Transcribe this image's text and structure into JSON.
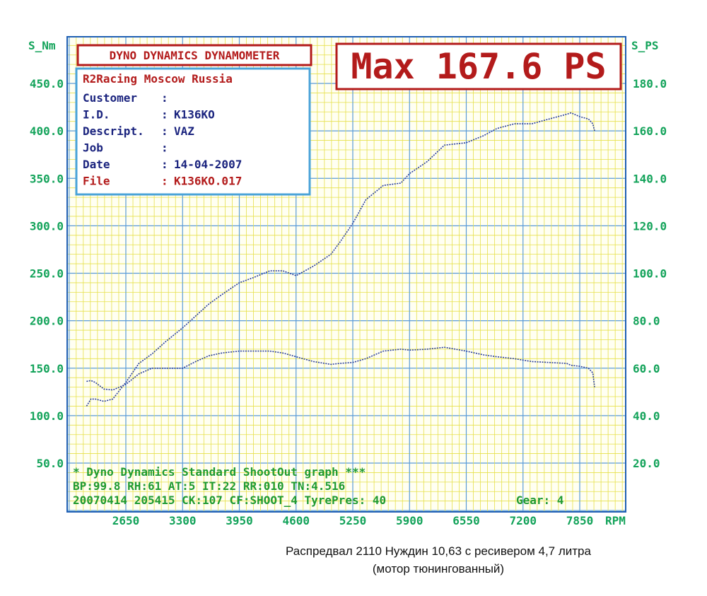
{
  "header": {
    "brand": "DYNO DYNAMICS DYNAMOMETER",
    "max_label": "Max 167.6 PS"
  },
  "info": {
    "shop": "R2Racing Moscow Russia",
    "rows": [
      {
        "key": "Customer",
        "sep": ":",
        "value": ""
      },
      {
        "key": "I.D.",
        "sep": ":",
        "value": "K136KO"
      },
      {
        "key": "Descript.",
        "sep": ":",
        "value": "VAZ"
      },
      {
        "key": "Job",
        "sep": ":",
        "value": ""
      },
      {
        "key": "Date",
        "sep": ":",
        "value": "14-04-2007"
      },
      {
        "key": "File",
        "sep": ":",
        "value": "K136KO.017"
      }
    ]
  },
  "footer": {
    "line1": "* Dyno Dynamics Standard ShootOut graph ***",
    "line2": "BP:99.8  RH:61 AT:5  IT:22  RR:010 TN:4.516",
    "line3": "20070414 205415 CK:107 CF:SHOOT_4  TyrePres: 40",
    "gear": "Gear: 4"
  },
  "caption": {
    "line1": "Распредвал 2110 Нуждин 10,63 с ресивером 4,7 литра",
    "line2": "(мотор тюнингованный)"
  },
  "colors": {
    "frame": "#1f5fb4",
    "grid_minor": "#e6e04a",
    "grid_major": "#5a9bd8",
    "axis_text": "#13a35a",
    "footer_text": "#1f9a30",
    "title_red": "#b31b1b",
    "info_blue": "#1a237e",
    "curve": "#2a3f9e",
    "background": "#fffff2"
  },
  "chart_data": {
    "type": "line",
    "x_unit": "RPM",
    "x_ticks": [
      2650,
      3300,
      3950,
      4600,
      5250,
      5900,
      6550,
      7200,
      7850
    ],
    "xlim": [
      2000,
      8500
    ],
    "y_left_label": "S_Nm",
    "y_left_ticks": [
      "50.0",
      "100.0",
      "150.0",
      "200.0",
      "250.0",
      "300.0",
      "350.0",
      "400.0",
      "450.0"
    ],
    "y_left_lim": [
      50,
      450
    ],
    "y_right_label": "S_PS",
    "y_right_ticks": [
      "20.0",
      "40.0",
      "60.0",
      "80.0",
      "100.0",
      "120.0",
      "140.0",
      "160.0",
      "180.0"
    ],
    "y_right_lim": [
      20,
      180
    ],
    "grid": true,
    "series": [
      {
        "name": "",
        "axis": "left",
        "x": [
          2200,
          2250,
          2300,
          2400,
          2500,
          2650,
          2800,
          2950,
          3100,
          3300,
          3450,
          3600,
          3750,
          3950,
          4100,
          4300,
          4450,
          4600,
          4800,
          5000,
          5100,
          5250,
          5400,
          5600,
          5800,
          5900,
          6100,
          6300,
          6550,
          6750,
          6900,
          7100,
          7300,
          7500,
          7700,
          7750,
          7850,
          7950,
          8000,
          8020
        ],
        "y": [
          136,
          137,
          135,
          128,
          127,
          133,
          144,
          150,
          150,
          150,
          157,
          163,
          166,
          168,
          168,
          168,
          166,
          162,
          157,
          154,
          155,
          156,
          160,
          168,
          170,
          169,
          170,
          172,
          168,
          164,
          162,
          160,
          157,
          156,
          155,
          153,
          152,
          150,
          145,
          130
        ]
      },
      {
        "name": "",
        "axis": "right",
        "x": [
          2200,
          2250,
          2300,
          2400,
          2500,
          2650,
          2800,
          2950,
          3100,
          3300,
          3450,
          3600,
          3750,
          3950,
          4100,
          4300,
          4450,
          4600,
          4800,
          5000,
          5100,
          5250,
          5400,
          5600,
          5800,
          5900,
          6100,
          6300,
          6550,
          6750,
          6900,
          7100,
          7300,
          7500,
          7700,
          7750,
          7850,
          7950,
          8000,
          8020
        ],
        "y": [
          44,
          47,
          47,
          46,
          47,
          54,
          62,
          66,
          71,
          77,
          82,
          87,
          91,
          96,
          98,
          101,
          101,
          99,
          103,
          108,
          113,
          121,
          131,
          137,
          138,
          142,
          147,
          154,
          155,
          158,
          161,
          163,
          163,
          165,
          167,
          167.6,
          166,
          165,
          163,
          160
        ]
      }
    ]
  }
}
